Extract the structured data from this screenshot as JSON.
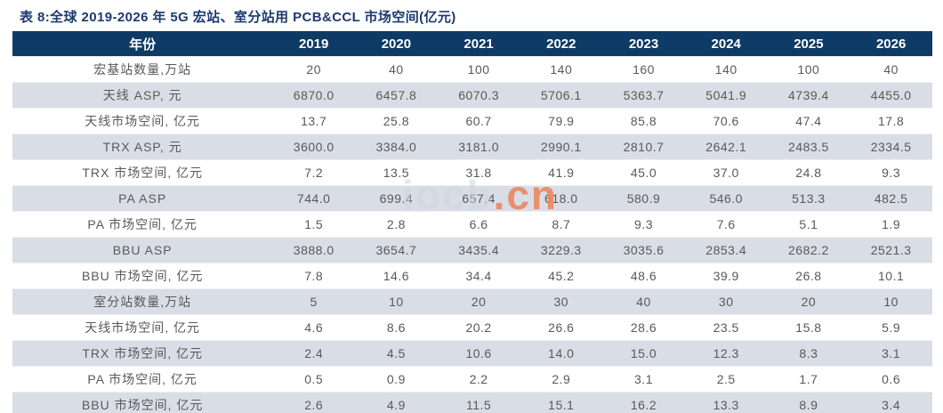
{
  "page": {
    "title": "表 8:全球 2019-2026 年 5G 宏站、室分站用 PCB&CCL 市场空间(亿元)"
  },
  "colors": {
    "title": "#1d3a6e",
    "header_bg": "#0e3a66",
    "header_text": "#ffffff",
    "stripe_row": "#d9dde6",
    "data_text": "#595959",
    "bottom_border": "#2d6ca2",
    "watermark_gray": "#cdd4df",
    "watermark_orange": "#e9875f"
  },
  "watermark": {
    "gray_part": "iocb",
    "orange_part": ".cn"
  },
  "table": {
    "header": [
      "年份",
      "2019",
      "2020",
      "2021",
      "2022",
      "2023",
      "2024",
      "2025",
      "2026"
    ],
    "rows": [
      {
        "label": "宏基站数量,万站",
        "values": [
          "20",
          "40",
          "100",
          "140",
          "160",
          "140",
          "100",
          "40"
        ]
      },
      {
        "label": "天线 ASP, 元",
        "values": [
          "6870.0",
          "6457.8",
          "6070.3",
          "5706.1",
          "5363.7",
          "5041.9",
          "4739.4",
          "4455.0"
        ]
      },
      {
        "label": "天线市场空间, 亿元",
        "values": [
          "13.7",
          "25.8",
          "60.7",
          "79.9",
          "85.8",
          "70.6",
          "47.4",
          "17.8"
        ]
      },
      {
        "label": "TRX ASP, 元",
        "values": [
          "3600.0",
          "3384.0",
          "3181.0",
          "2990.1",
          "2810.7",
          "2642.1",
          "2483.5",
          "2334.5"
        ]
      },
      {
        "label": "TRX 市场空间, 亿元",
        "values": [
          "7.2",
          "13.5",
          "31.8",
          "41.9",
          "45.0",
          "37.0",
          "24.8",
          "9.3"
        ]
      },
      {
        "label": "PA ASP",
        "values": [
          "744.0",
          "699.4",
          "657.4",
          "618.0",
          "580.9",
          "546.0",
          "513.3",
          "482.5"
        ]
      },
      {
        "label": "PA 市场空间, 亿元",
        "values": [
          "1.5",
          "2.8",
          "6.6",
          "8.7",
          "9.3",
          "7.6",
          "5.1",
          "1.9"
        ]
      },
      {
        "label": "BBU ASP",
        "values": [
          "3888.0",
          "3654.7",
          "3435.4",
          "3229.3",
          "3035.6",
          "2853.4",
          "2682.2",
          "2521.3"
        ]
      },
      {
        "label": "BBU 市场空间, 亿元",
        "values": [
          "7.8",
          "14.6",
          "34.4",
          "45.2",
          "48.6",
          "39.9",
          "26.8",
          "10.1"
        ]
      },
      {
        "label": "室分站数量,万站",
        "values": [
          "5",
          "10",
          "20",
          "30",
          "40",
          "30",
          "20",
          "10"
        ]
      },
      {
        "label": "天线市场空间, 亿元",
        "values": [
          "4.6",
          "8.6",
          "20.2",
          "26.6",
          "28.6",
          "23.5",
          "15.8",
          "5.9"
        ]
      },
      {
        "label": "TRX 市场空间, 亿元",
        "values": [
          "2.4",
          "4.5",
          "10.6",
          "14.0",
          "15.0",
          "12.3",
          "8.3",
          "3.1"
        ]
      },
      {
        "label": "PA 市场空间, 亿元",
        "values": [
          "0.5",
          "0.9",
          "2.2",
          "2.9",
          "3.1",
          "2.5",
          "1.7",
          "0.6"
        ]
      },
      {
        "label": "BBU 市场空间, 亿元",
        "values": [
          "2.6",
          "4.9",
          "11.5",
          "15.1",
          "16.2",
          "13.3",
          "8.9",
          "3.4"
        ]
      }
    ]
  }
}
